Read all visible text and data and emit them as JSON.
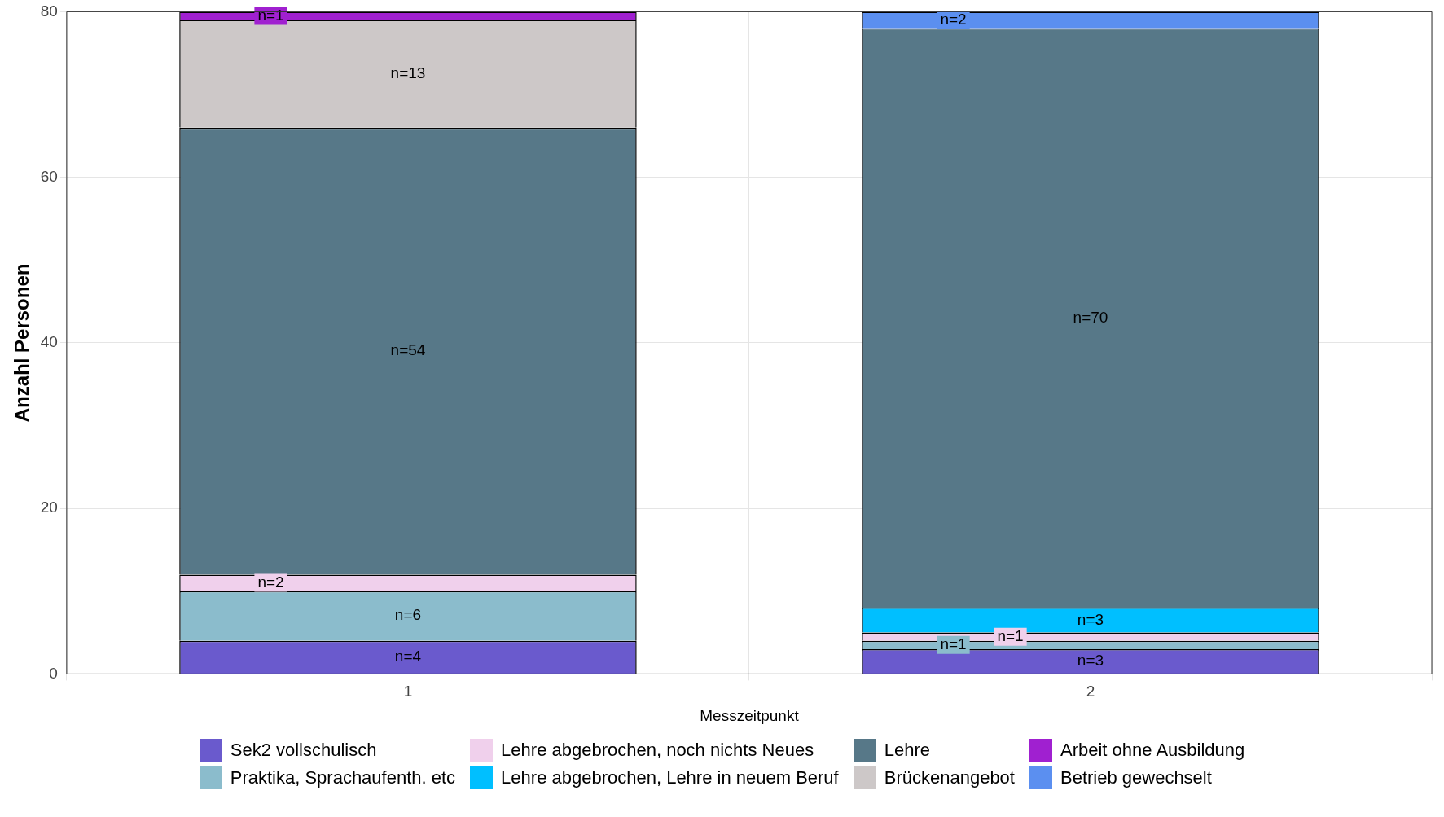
{
  "chart_data": {
    "type": "bar",
    "stacked": true,
    "xlabel": "Messzeitpunkt",
    "ylabel": "Anzahl Personen",
    "categories": [
      "1",
      "2"
    ],
    "series": [
      {
        "name": "Sek2 vollschulisch",
        "color": "#6a5acd",
        "values": [
          4,
          3
        ],
        "value_labels": [
          "n=4",
          "n=3"
        ]
      },
      {
        "name": "Praktika, Sprachaufenth. etc",
        "color": "#8bbccc",
        "values": [
          6,
          1
        ],
        "value_labels": [
          "n=6",
          "n=1"
        ]
      },
      {
        "name": "Lehre abgebrochen, noch nichts Neues",
        "color": "#f0d0ec",
        "values": [
          2,
          1
        ],
        "value_labels": [
          "n=2",
          "n=1"
        ]
      },
      {
        "name": "Lehre abgebrochen, Lehre in neuem Beruf",
        "color": "#00bfff",
        "values": [
          null,
          3
        ],
        "value_labels": [
          null,
          "n=3"
        ]
      },
      {
        "name": "Lehre",
        "color": "#577888",
        "values": [
          54,
          70
        ],
        "value_labels": [
          "n=54",
          "n=70"
        ]
      },
      {
        "name": "Brückenangebot",
        "color": "#cdc8c8",
        "values": [
          13,
          null
        ],
        "value_labels": [
          "n=13",
          null
        ]
      },
      {
        "name": "Arbeit ohne Ausbildung",
        "color": "#a020d0",
        "values": [
          1,
          null
        ],
        "value_labels": [
          "n=1",
          null
        ]
      },
      {
        "name": "Betrieb gewechselt",
        "color": "#5b8ff0",
        "values": [
          null,
          2
        ],
        "value_labels": [
          null,
          "n=2"
        ]
      }
    ],
    "ylim": [
      0,
      80
    ],
    "yticks": [
      0,
      20,
      40,
      60,
      80
    ],
    "grid": true,
    "legend": "bottom"
  }
}
